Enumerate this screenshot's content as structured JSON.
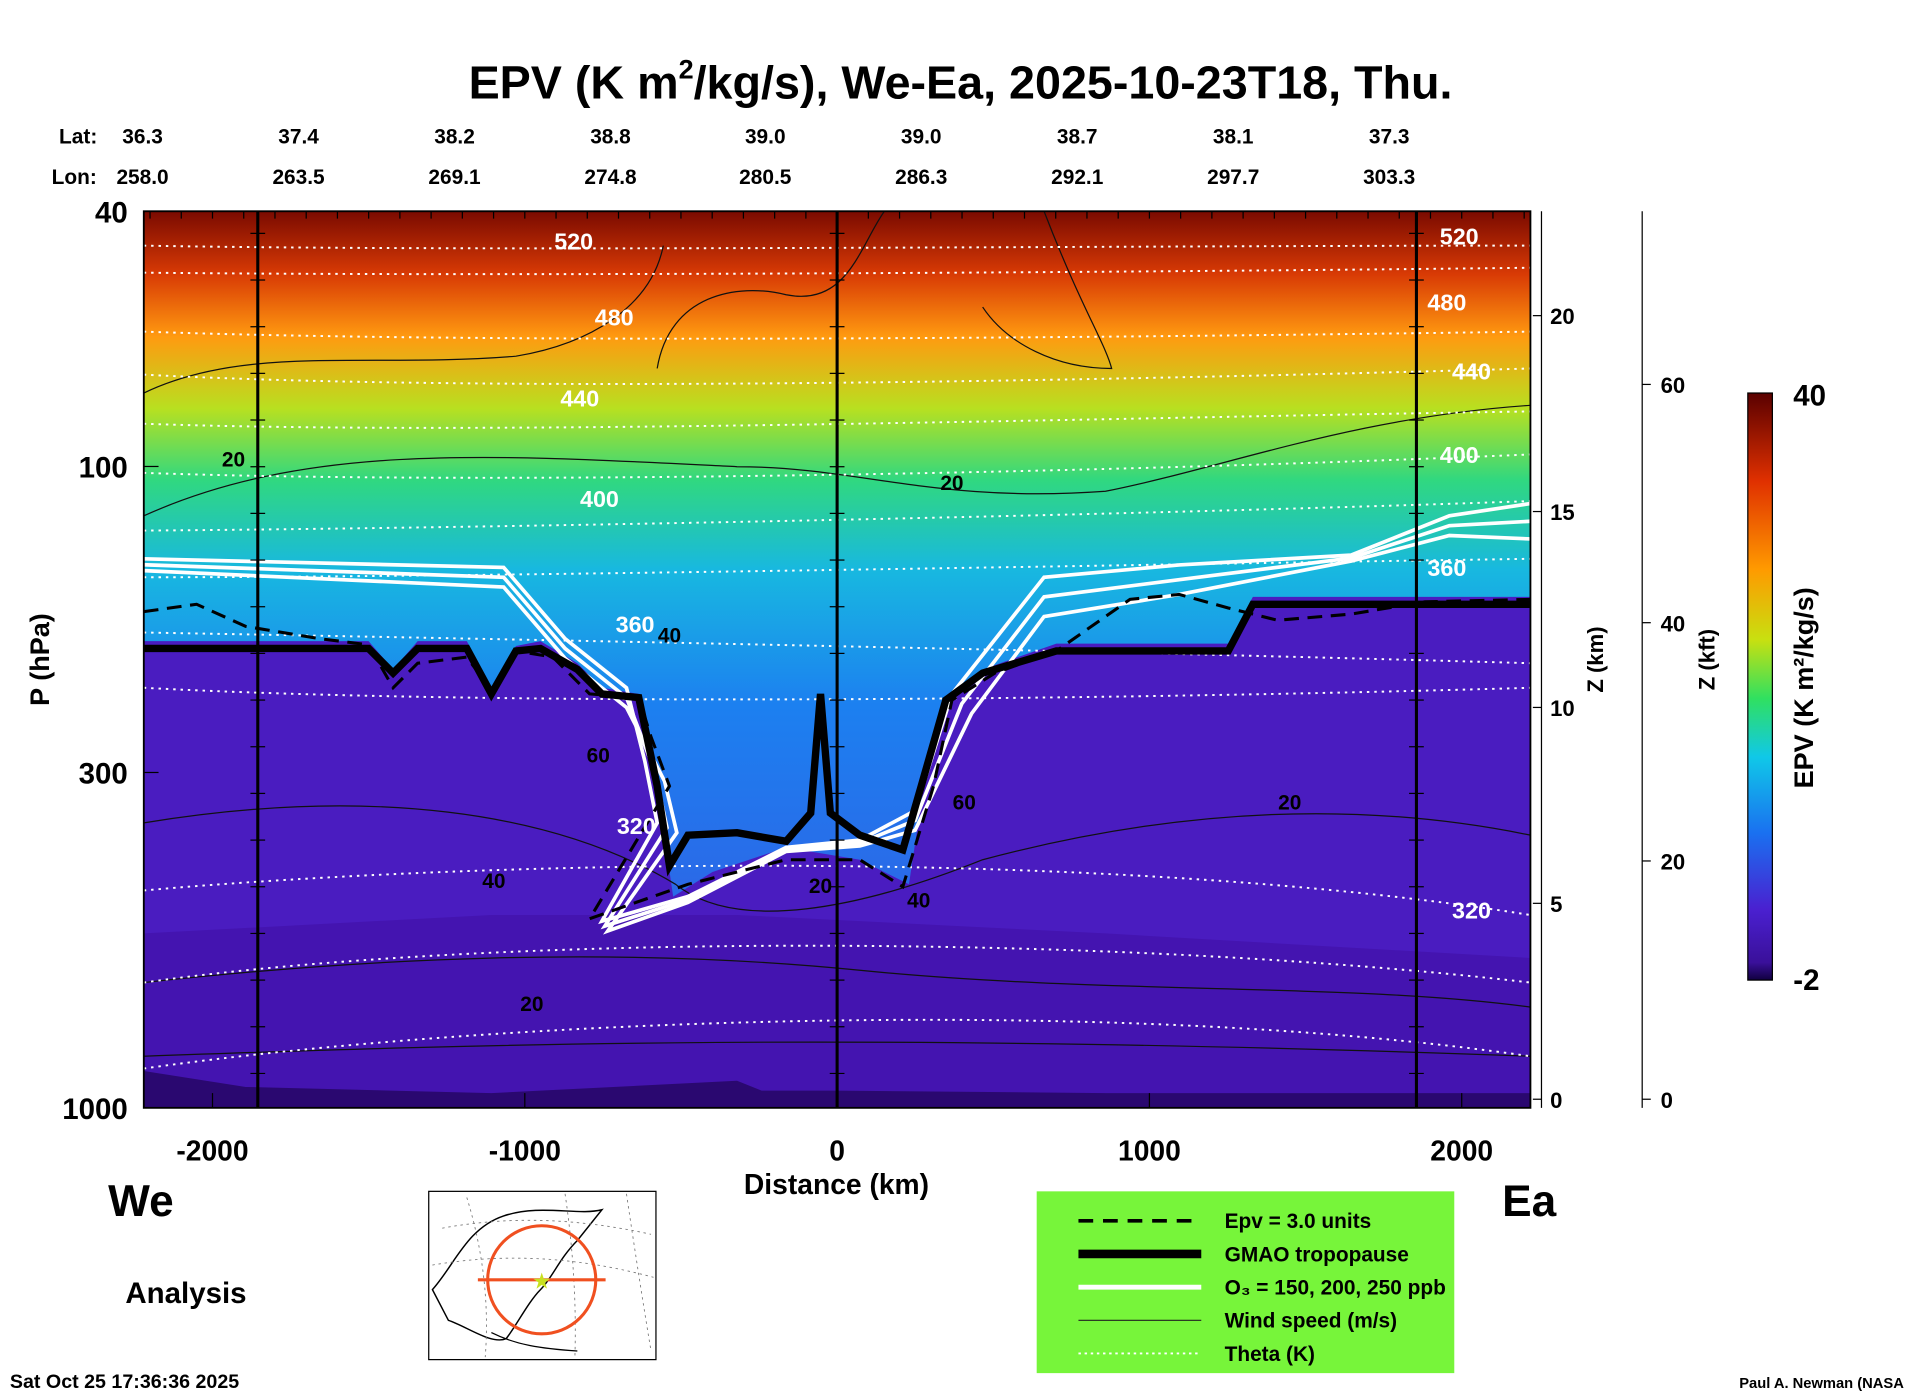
{
  "chart_data": {
    "type": "heatmap",
    "title_pre": "EPV (K m",
    "title_sup": "2",
    "title_post": "/kg/s), We-Ea, 2025-10-23T18, Thu.",
    "xlabel": "Distance (km)",
    "ylabel": "P (hPa)",
    "y2label": "Z (km)",
    "y3label": "Z (kft)",
    "colorbar_label": "EPV (K m²/kg/s)",
    "colorbar_range": [
      -2,
      40
    ],
    "colorbar_ticks": [
      "40",
      "-2"
    ],
    "xlim": [
      -2220,
      2220
    ],
    "ylim_hpa": [
      1000,
      40
    ],
    "x_ticks": [
      -2000,
      -1000,
      0,
      1000,
      2000
    ],
    "x_tick_labels": [
      "-2000",
      "-1000",
      "0",
      "1000",
      "2000"
    ],
    "y_ticks": [
      40,
      100,
      300,
      1000
    ],
    "y_tick_labels": [
      "40",
      "100",
      "300",
      "1000"
    ],
    "zkm_ticks": [
      0,
      5,
      10,
      15,
      20
    ],
    "zkm_tick_labels": [
      "0",
      "5",
      "10",
      "15",
      "20"
    ],
    "zkft_ticks": [
      0,
      20,
      40,
      60
    ],
    "zkft_tick_labels": [
      "0",
      "20",
      "40",
      "60"
    ],
    "lat_label": "Lat:",
    "lon_label": "Lon:",
    "lat": [
      "36.3",
      "37.4",
      "38.2",
      "38.8",
      "39.0",
      "39.0",
      "38.7",
      "38.1",
      "37.3"
    ],
    "lon": [
      "258.0",
      "263.5",
      "269.1",
      "274.8",
      "280.5",
      "286.3",
      "292.1",
      "297.7",
      "303.3"
    ],
    "theta_labels": [
      "520",
      "480",
      "440",
      "400",
      "360",
      "320",
      "520",
      "480",
      "440",
      "400",
      "360",
      "320"
    ],
    "wind_labels": [
      "20",
      "20",
      "40",
      "60",
      "40",
      "20",
      "60",
      "40",
      "20",
      "20"
    ],
    "side_left": "We",
    "side_right": "Ea",
    "mode": "Analysis",
    "legend": [
      {
        "label": "Epv = 3.0 units",
        "style": "dashed"
      },
      {
        "label": "GMAO tropopause",
        "style": "thick"
      },
      {
        "label": "O₃ = 150, 200, 250 ppb",
        "style": "white"
      },
      {
        "label": "Wind speed (m/s)",
        "style": "thin"
      },
      {
        "label": "Theta (K)",
        "style": "dotted"
      }
    ],
    "legend_bg": "#77f53a",
    "timestamp": "Sat Oct 25 17:36:36 2025",
    "credit": "Paul A. Newman (NASA"
  }
}
